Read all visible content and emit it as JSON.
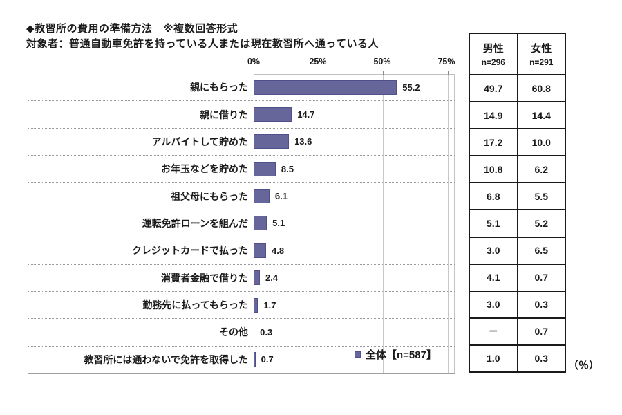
{
  "title": "◆教習所の費用の準備方法　※複数回答形式",
  "subtitle": "対象者：普通自動車免許を持っている人または現在教習所へ通っている人",
  "axis": {
    "ticks": [
      "0%",
      "25%",
      "50%",
      "75%"
    ]
  },
  "legend": {
    "label": "全体【n=587】"
  },
  "unit_label": "（％）",
  "table_header": {
    "male": {
      "label": "男性",
      "n": "n=296"
    },
    "female": {
      "label": "女性",
      "n": "n=291"
    }
  },
  "rows": [
    {
      "label": "親にもらった",
      "total": "55.2",
      "male": "49.7",
      "female": "60.8"
    },
    {
      "label": "親に借りた",
      "total": "14.7",
      "male": "14.9",
      "female": "14.4"
    },
    {
      "label": "アルバイトして貯めた",
      "total": "13.6",
      "male": "17.2",
      "female": "10.0"
    },
    {
      "label": "お年玉などを貯めた",
      "total": "8.5",
      "male": "10.8",
      "female": "6.2"
    },
    {
      "label": "祖父母にもらった",
      "total": "6.1",
      "male": "6.8",
      "female": "5.5"
    },
    {
      "label": "運転免許ローンを組んだ",
      "total": "5.1",
      "male": "5.1",
      "female": "5.2"
    },
    {
      "label": "クレジットカードで払った",
      "total": "4.8",
      "male": "3.0",
      "female": "6.5"
    },
    {
      "label": "消費者金融で借りた",
      "total": "2.4",
      "male": "4.1",
      "female": "0.7"
    },
    {
      "label": "勤務先に払ってもらった",
      "total": "1.7",
      "male": "3.0",
      "female": "0.3"
    },
    {
      "label": "その他",
      "total": "0.3",
      "male": "－",
      "female": "0.7"
    },
    {
      "label": "教習所には通わないで免許を取得した",
      "total": "0.7",
      "male": "1.0",
      "female": "0.3"
    }
  ],
  "chart_data": {
    "type": "bar",
    "orientation": "horizontal",
    "title": "◆教習所の費用の準備方法　※複数回答形式",
    "subtitle": "対象者：普通自動車免許を持っている人または現在教習所へ通っている人",
    "categories": [
      "親にもらった",
      "親に借りた",
      "アルバイトして貯めた",
      "お年玉などを貯めた",
      "祖父母にもらった",
      "運転免許ローンを組んだ",
      "クレジットカードで払った",
      "消費者金融で借りた",
      "勤務先に払ってもらった",
      "その他",
      "教習所には通わないで免許を取得した"
    ],
    "series": [
      {
        "name": "全体【n=587】",
        "values": [
          55.2,
          14.7,
          13.6,
          8.5,
          6.1,
          5.1,
          4.8,
          2.4,
          1.7,
          0.3,
          0.7
        ]
      },
      {
        "name": "男性 n=296",
        "values": [
          49.7,
          14.9,
          17.2,
          10.8,
          6.8,
          5.1,
          3.0,
          4.1,
          3.0,
          null,
          1.0
        ]
      },
      {
        "name": "女性 n=291",
        "values": [
          60.8,
          14.4,
          10.0,
          6.2,
          5.5,
          5.2,
          6.5,
          0.7,
          0.3,
          0.7,
          0.3
        ]
      }
    ],
    "xtick_labels": [
      "0%",
      "25%",
      "50%",
      "75%"
    ],
    "xlim": [
      0,
      77.5
    ],
    "grid": true,
    "legend_position": "inside-bottom-right",
    "bar_color": "#66669B",
    "unit": "%"
  }
}
